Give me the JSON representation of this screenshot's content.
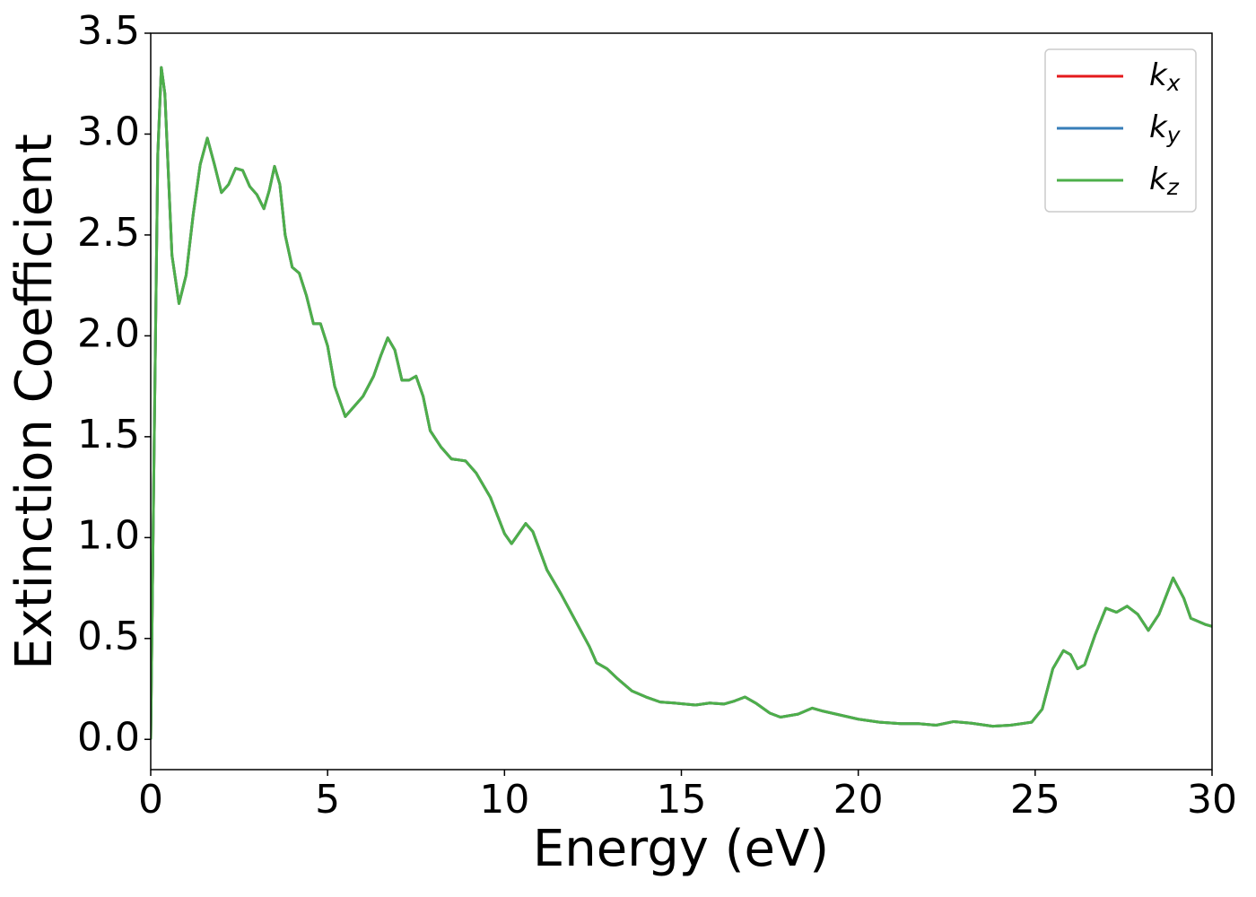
{
  "chart_data": {
    "type": "line",
    "xlabel": "Energy (eV)",
    "ylabel": "Extinction Coefficient",
    "x": [
      0,
      0.1,
      0.2,
      0.3,
      0.4,
      0.5,
      0.6,
      0.8,
      1.0,
      1.2,
      1.4,
      1.6,
      1.8,
      2.0,
      2.2,
      2.4,
      2.6,
      2.8,
      3.0,
      3.2,
      3.35,
      3.5,
      3.65,
      3.8,
      4.0,
      4.2,
      4.4,
      4.6,
      4.8,
      5.0,
      5.2,
      5.5,
      5.8,
      6.0,
      6.3,
      6.5,
      6.7,
      6.9,
      7.1,
      7.3,
      7.5,
      7.7,
      7.9,
      8.2,
      8.5,
      8.9,
      9.2,
      9.6,
      10.0,
      10.2,
      10.4,
      10.6,
      10.8,
      11.2,
      11.6,
      12.0,
      12.4,
      12.6,
      12.9,
      13.2,
      13.6,
      14.0,
      14.4,
      14.8,
      15.4,
      15.8,
      16.2,
      16.5,
      16.8,
      17.1,
      17.5,
      17.8,
      18.3,
      18.7,
      19.0,
      19.5,
      20.0,
      20.6,
      21.2,
      21.7,
      22.2,
      22.7,
      23.2,
      23.8,
      24.3,
      24.9,
      25.2,
      25.5,
      25.8,
      26.0,
      26.2,
      26.4,
      26.7,
      27.0,
      27.3,
      27.6,
      27.9,
      28.2,
      28.5,
      28.9,
      29.2,
      29.4,
      29.8,
      30
    ],
    "series": [
      {
        "name": "kx",
        "color": "#e41a1c",
        "values": [
          0.0,
          1.5,
          2.9,
          3.33,
          3.2,
          2.8,
          2.4,
          2.16,
          2.3,
          2.6,
          2.85,
          2.98,
          2.85,
          2.71,
          2.75,
          2.83,
          2.82,
          2.74,
          2.7,
          2.63,
          2.72,
          2.84,
          2.75,
          2.5,
          2.34,
          2.31,
          2.2,
          2.06,
          2.06,
          1.95,
          1.75,
          1.6,
          1.66,
          1.7,
          1.8,
          1.9,
          1.99,
          1.93,
          1.78,
          1.78,
          1.8,
          1.7,
          1.53,
          1.45,
          1.39,
          1.38,
          1.32,
          1.2,
          1.02,
          0.97,
          1.02,
          1.07,
          1.03,
          0.84,
          0.72,
          0.59,
          0.46,
          0.38,
          0.35,
          0.3,
          0.24,
          0.21,
          0.185,
          0.18,
          0.17,
          0.18,
          0.175,
          0.19,
          0.21,
          0.18,
          0.13,
          0.11,
          0.125,
          0.155,
          0.14,
          0.12,
          0.1,
          0.085,
          0.078,
          0.078,
          0.07,
          0.088,
          0.08,
          0.065,
          0.07,
          0.085,
          0.15,
          0.35,
          0.44,
          0.42,
          0.35,
          0.37,
          0.52,
          0.65,
          0.63,
          0.66,
          0.62,
          0.54,
          0.62,
          0.8,
          0.7,
          0.6,
          0.57,
          0.56
        ]
      },
      {
        "name": "ky",
        "color": "#377eb8",
        "values": [
          0.0,
          1.5,
          2.9,
          3.33,
          3.2,
          2.8,
          2.4,
          2.16,
          2.3,
          2.6,
          2.85,
          2.98,
          2.85,
          2.71,
          2.75,
          2.83,
          2.82,
          2.74,
          2.7,
          2.63,
          2.72,
          2.84,
          2.75,
          2.5,
          2.34,
          2.31,
          2.2,
          2.06,
          2.06,
          1.95,
          1.75,
          1.6,
          1.66,
          1.7,
          1.8,
          1.9,
          1.99,
          1.93,
          1.78,
          1.78,
          1.8,
          1.7,
          1.53,
          1.45,
          1.39,
          1.38,
          1.32,
          1.2,
          1.02,
          0.97,
          1.02,
          1.07,
          1.03,
          0.84,
          0.72,
          0.59,
          0.46,
          0.38,
          0.35,
          0.3,
          0.24,
          0.21,
          0.185,
          0.18,
          0.17,
          0.18,
          0.175,
          0.19,
          0.21,
          0.18,
          0.13,
          0.11,
          0.125,
          0.155,
          0.14,
          0.12,
          0.1,
          0.085,
          0.078,
          0.078,
          0.07,
          0.088,
          0.08,
          0.065,
          0.07,
          0.085,
          0.15,
          0.35,
          0.44,
          0.42,
          0.35,
          0.37,
          0.52,
          0.65,
          0.63,
          0.66,
          0.62,
          0.54,
          0.62,
          0.8,
          0.7,
          0.6,
          0.57,
          0.56
        ]
      },
      {
        "name": "kz",
        "color": "#4daf4a",
        "values": [
          0.0,
          1.5,
          2.9,
          3.33,
          3.2,
          2.8,
          2.4,
          2.16,
          2.3,
          2.6,
          2.85,
          2.98,
          2.85,
          2.71,
          2.75,
          2.83,
          2.82,
          2.74,
          2.7,
          2.63,
          2.72,
          2.84,
          2.75,
          2.5,
          2.34,
          2.31,
          2.2,
          2.06,
          2.06,
          1.95,
          1.75,
          1.6,
          1.66,
          1.7,
          1.8,
          1.9,
          1.99,
          1.93,
          1.78,
          1.78,
          1.8,
          1.7,
          1.53,
          1.45,
          1.39,
          1.38,
          1.32,
          1.2,
          1.02,
          0.97,
          1.02,
          1.07,
          1.03,
          0.84,
          0.72,
          0.59,
          0.46,
          0.38,
          0.35,
          0.3,
          0.24,
          0.21,
          0.185,
          0.18,
          0.17,
          0.18,
          0.175,
          0.19,
          0.21,
          0.18,
          0.13,
          0.11,
          0.125,
          0.155,
          0.14,
          0.12,
          0.1,
          0.085,
          0.078,
          0.078,
          0.07,
          0.088,
          0.08,
          0.065,
          0.07,
          0.085,
          0.15,
          0.35,
          0.44,
          0.42,
          0.35,
          0.37,
          0.52,
          0.65,
          0.63,
          0.66,
          0.62,
          0.54,
          0.62,
          0.8,
          0.7,
          0.6,
          0.57,
          0.56
        ]
      }
    ],
    "xlim": [
      0,
      30
    ],
    "xticks": [
      0,
      5,
      10,
      15,
      20,
      25,
      30
    ],
    "ylim": [
      -0.15,
      3.5
    ],
    "yticks": [
      {
        "value": 0,
        "label": "0.0"
      },
      0.5,
      {
        "value": 1,
        "label": "1.0"
      },
      1.5,
      {
        "value": 2,
        "label": "2.0"
      },
      2.5,
      {
        "value": 3,
        "label": "3.0"
      },
      3.5
    ],
    "legend": "upper right",
    "grid": false
  }
}
